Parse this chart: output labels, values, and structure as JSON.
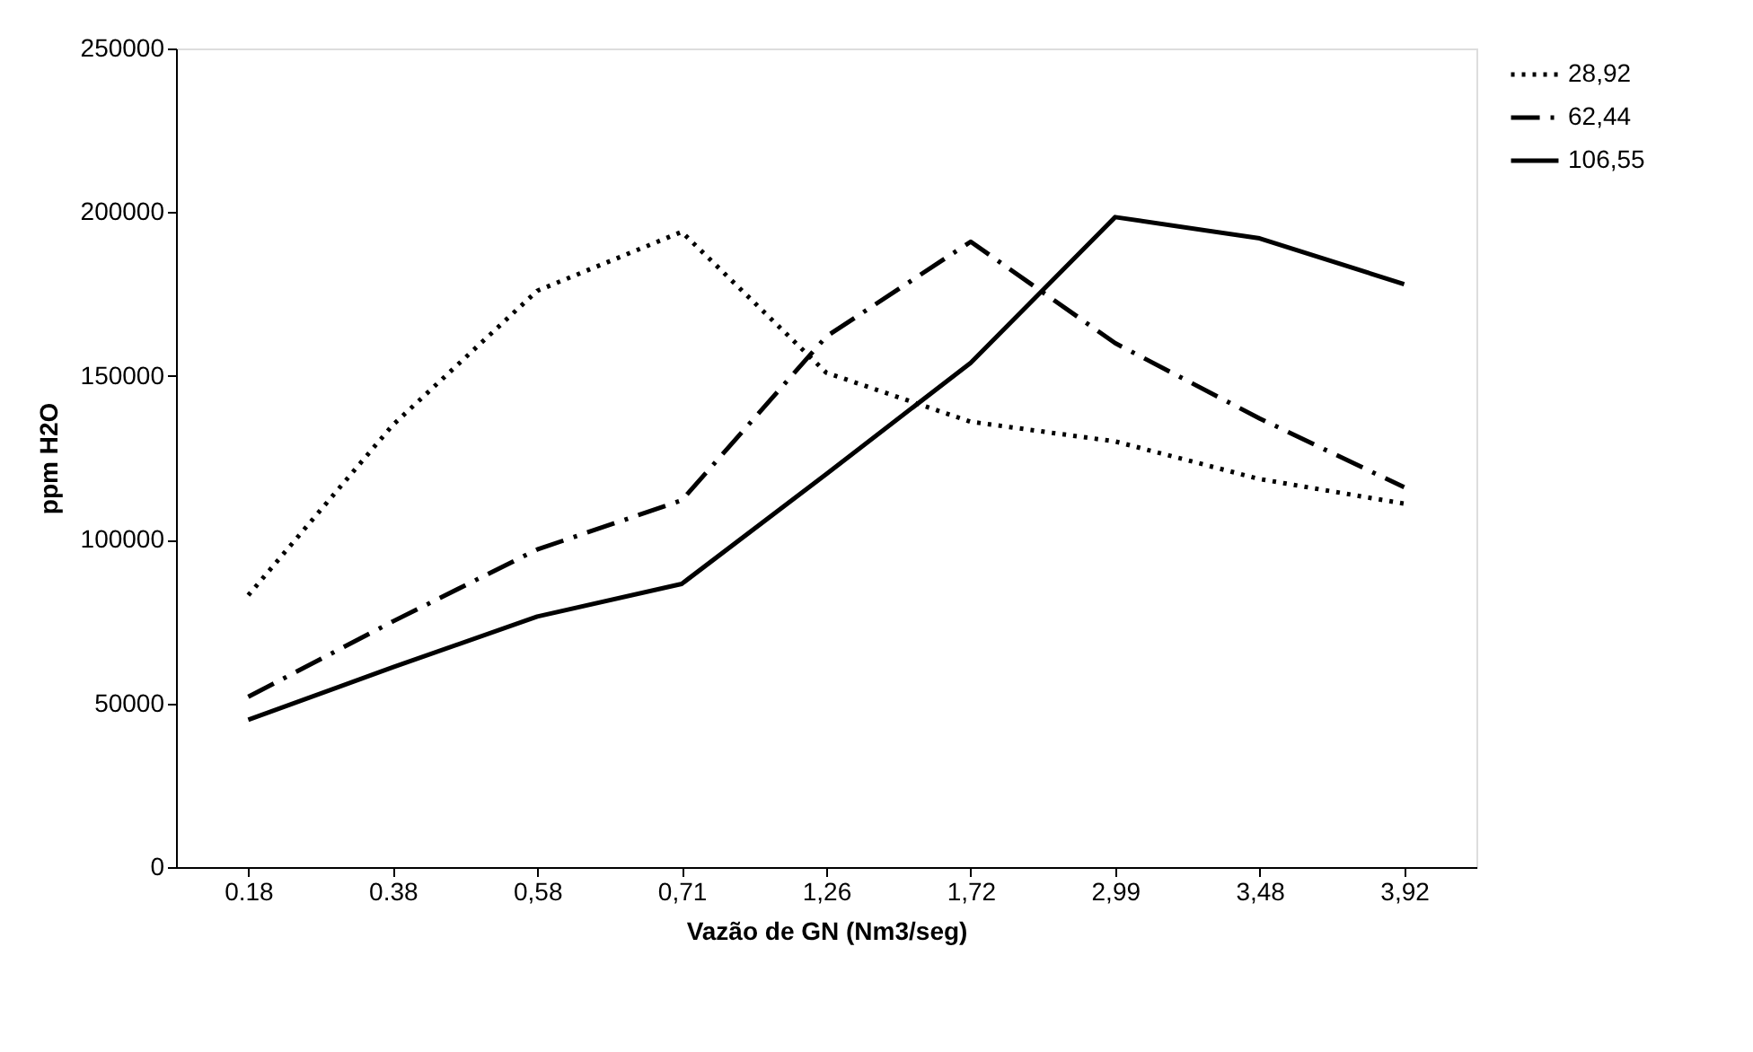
{
  "chart_data": {
    "type": "line",
    "xlabel": "Vazão de GN (Nm3/seg)",
    "ylabel": "ppm H2O",
    "categories": [
      "0.18",
      "0.38",
      "0,58",
      "0,71",
      "1,26",
      "1,72",
      "2,99",
      "3,48",
      "3,92"
    ],
    "ylim": [
      0,
      250000
    ],
    "yticks": [
      0,
      50000,
      100000,
      150000,
      200000,
      250000
    ],
    "grid": false,
    "legend": "right",
    "marker": "none",
    "series": [
      {
        "name": "28,92",
        "color": "#000000",
        "line_style": "dotted",
        "values": [
          83000,
          135000,
          176000,
          194000,
          151000,
          136000,
          130000,
          118500,
          111000
        ]
      },
      {
        "name": "62,44",
        "color": "#000000",
        "line_style": "dashdot",
        "values": [
          52000,
          75000,
          97000,
          112000,
          162000,
          191000,
          160000,
          137000,
          116000
        ]
      },
      {
        "name": "106,55",
        "color": "#000000",
        "line_style": "solid",
        "values": [
          45000,
          61000,
          76500,
          86500,
          120000,
          154000,
          198500,
          192000,
          178000
        ]
      }
    ]
  }
}
